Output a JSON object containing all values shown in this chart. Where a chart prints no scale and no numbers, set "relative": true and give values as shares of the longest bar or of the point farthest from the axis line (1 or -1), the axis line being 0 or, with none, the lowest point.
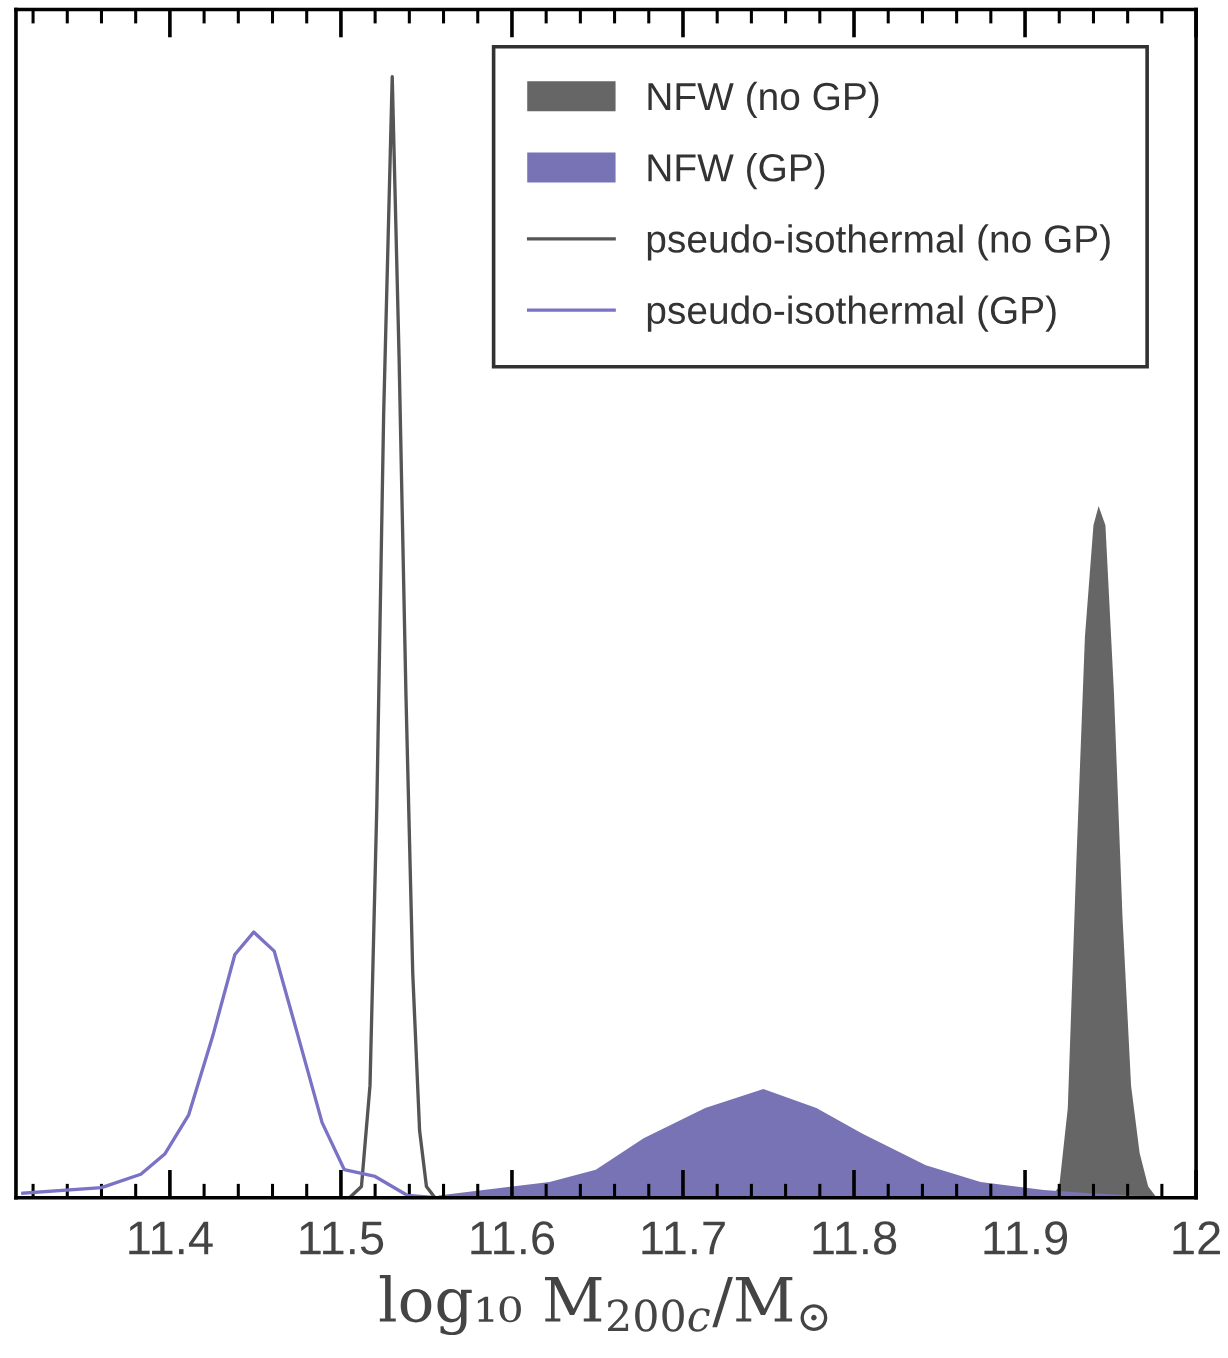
{
  "chart_data": {
    "type": "line",
    "relative": true,
    "xlabel": "log₁₀ M$_{200c}$/M$_{⊙}$",
    "xlim": [
      11.31,
      12.0
    ],
    "xticks": [
      {
        "value": 11.32,
        "label": null
      },
      {
        "value": 11.34,
        "label": null
      },
      {
        "value": 11.36,
        "label": null
      },
      {
        "value": 11.38,
        "label": null
      },
      {
        "value": 11.4,
        "label": "11.4"
      },
      {
        "value": 11.42,
        "label": null
      },
      {
        "value": 11.44,
        "label": null
      },
      {
        "value": 11.46,
        "label": null
      },
      {
        "value": 11.48,
        "label": null
      },
      {
        "value": 11.5,
        "label": "11.5"
      },
      {
        "value": 11.52,
        "label": null
      },
      {
        "value": 11.54,
        "label": null
      },
      {
        "value": 11.56,
        "label": null
      },
      {
        "value": 11.58,
        "label": null
      },
      {
        "value": 11.6,
        "label": "11.6"
      },
      {
        "value": 11.62,
        "label": null
      },
      {
        "value": 11.64,
        "label": null
      },
      {
        "value": 11.66,
        "label": null
      },
      {
        "value": 11.68,
        "label": null
      },
      {
        "value": 11.7,
        "label": "11.7"
      },
      {
        "value": 11.72,
        "label": null
      },
      {
        "value": 11.74,
        "label": null
      },
      {
        "value": 11.76,
        "label": null
      },
      {
        "value": 11.78,
        "label": null
      },
      {
        "value": 11.8,
        "label": "11.8"
      },
      {
        "value": 11.82,
        "label": null
      },
      {
        "value": 11.84,
        "label": null
      },
      {
        "value": 11.86,
        "label": null
      },
      {
        "value": 11.88,
        "label": null
      },
      {
        "value": 11.9,
        "label": "11.9"
      },
      {
        "value": 11.92,
        "label": null
      },
      {
        "value": 11.94,
        "label": null
      },
      {
        "value": 11.96,
        "label": null
      },
      {
        "value": 11.98,
        "label": null
      },
      {
        "value": 12.0,
        "label": "12"
      }
    ],
    "legend": "top right",
    "grid": false,
    "series": [
      {
        "name": "NFW (no GP)",
        "type": "area",
        "color": "#666666",
        "x": [
          11.915,
          11.92,
          11.925,
          11.93,
          11.935,
          11.94,
          11.943,
          11.947,
          11.952,
          11.957,
          11.962,
          11.967,
          11.972,
          11.977
        ],
        "values": [
          0,
          0.01,
          0.08,
          0.3,
          0.5,
          0.6,
          0.617,
          0.6,
          0.45,
          0.25,
          0.1,
          0.04,
          0.01,
          0
        ]
      },
      {
        "name": "NFW (GP)",
        "type": "area",
        "color": "#7873b5",
        "x": [
          11.557,
          11.622,
          11.649,
          11.677,
          11.713,
          11.747,
          11.778,
          11.805,
          11.842,
          11.874,
          11.911,
          11.938,
          11.979
        ],
        "values": [
          0.002,
          0.014,
          0.025,
          0.053,
          0.08,
          0.097,
          0.08,
          0.057,
          0.029,
          0.014,
          0.007,
          0.004,
          0.001
        ]
      },
      {
        "name": "pseudo-isothermal (no GP)",
        "color": "#555555",
        "x": [
          11.505,
          11.512,
          11.517,
          11.521,
          11.525,
          11.53,
          11.534,
          11.538,
          11.542,
          11.546,
          11.55,
          11.555
        ],
        "values": [
          0,
          0.01,
          0.1,
          0.35,
          0.7,
          1,
          0.75,
          0.45,
          0.2,
          0.06,
          0.01,
          0
        ]
      },
      {
        "name": "pseudo-isothermal (GP)",
        "color": "#7a73c5",
        "x": [
          11.314,
          11.36,
          11.383,
          11.397,
          11.411,
          11.425,
          11.438,
          11.449,
          11.461,
          11.475,
          11.489,
          11.502,
          11.52,
          11.539,
          11.557
        ],
        "values": [
          0.004,
          0.009,
          0.021,
          0.039,
          0.074,
          0.144,
          0.217,
          0.237,
          0.22,
          0.144,
          0.067,
          0.025,
          0.019,
          0.002,
          0
        ]
      }
    ]
  }
}
